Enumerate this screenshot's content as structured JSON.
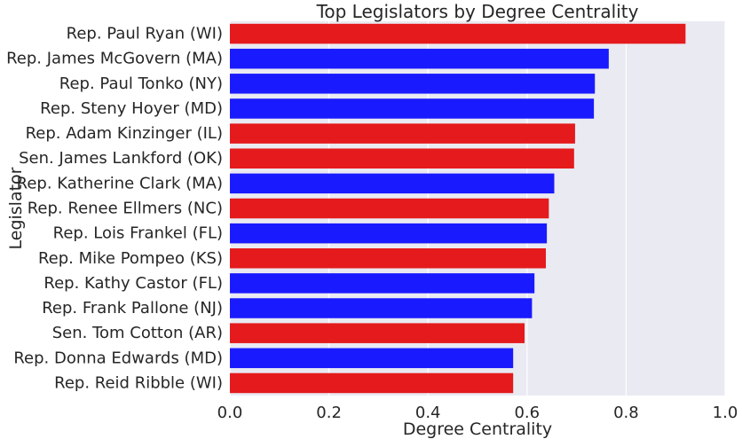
{
  "chart_data": {
    "type": "bar",
    "orientation": "horizontal",
    "title": "Top Legislators by Degree Centrality",
    "xlabel": "Degree Centrality",
    "ylabel": "Legislator",
    "xlim": [
      0.0,
      1.0
    ],
    "xticks": [
      "0.0",
      "0.2",
      "0.4",
      "0.6",
      "0.8",
      "1.0"
    ],
    "grid": true,
    "background": "#eaeaf2",
    "colors": {
      "red": "#e41a1c",
      "blue": "#1a1aff"
    },
    "categories": [
      "Rep. Paul Ryan (WI)",
      "Rep. James McGovern (MA)",
      "Rep. Paul Tonko (NY)",
      "Rep. Steny Hoyer (MD)",
      "Rep. Adam Kinzinger (IL)",
      "Sen. James Lankford (OK)",
      "Rep. Katherine Clark (MA)",
      "Rep. Renee Ellmers (NC)",
      "Rep. Lois Frankel (FL)",
      "Rep. Mike Pompeo (KS)",
      "Rep. Kathy Castor (FL)",
      "Rep. Frank Pallone (NJ)",
      "Sen. Tom Cotton (AR)",
      "Rep. Donna Edwards (MD)",
      "Rep. Reid Ribble (WI)"
    ],
    "values": [
      0.92,
      0.765,
      0.737,
      0.735,
      0.697,
      0.695,
      0.655,
      0.644,
      0.64,
      0.638,
      0.615,
      0.61,
      0.595,
      0.572,
      0.572
    ],
    "bar_colors": [
      "red",
      "blue",
      "blue",
      "blue",
      "red",
      "red",
      "blue",
      "red",
      "blue",
      "red",
      "blue",
      "blue",
      "red",
      "blue",
      "red"
    ]
  }
}
